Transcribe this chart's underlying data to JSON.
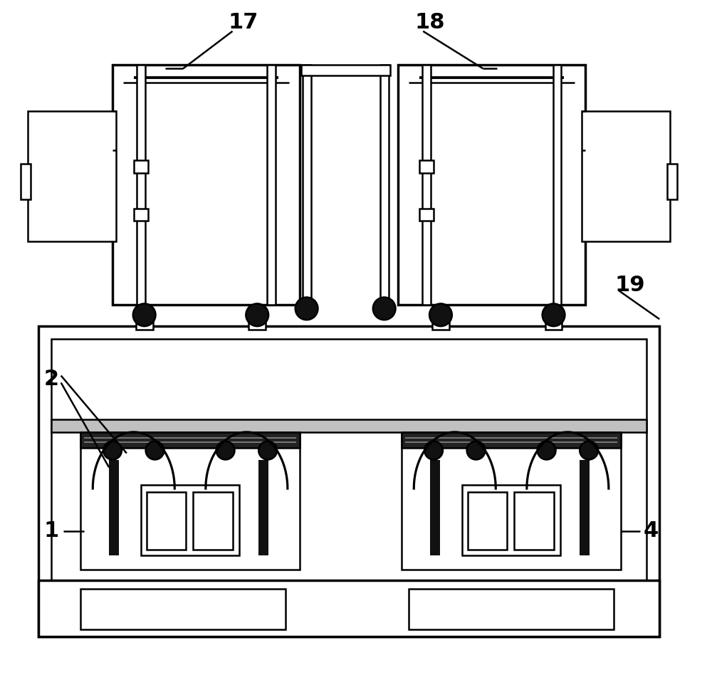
{
  "bg_color": "#ffffff",
  "line_color": "#000000",
  "figsize": [
    10.0,
    9.48
  ],
  "lw_main": 1.8,
  "lw_thick": 2.5,
  "lw_thin": 1.2
}
